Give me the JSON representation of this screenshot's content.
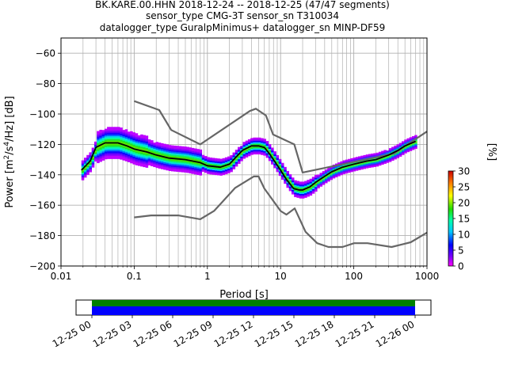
{
  "chart_data": {
    "type": "heatmap",
    "title_lines": [
      "BK.KARE.00.HHN   2018-12-24 -- 2018-12-25  (47/47 segments)",
      "sensor_type CMG-3T sensor_sn T310034",
      "datalogger_type GuralpMinimus+ datalogger_sn MINP-DF59"
    ],
    "xlabel": "Period [s]",
    "ylabel_parts": [
      "Power [m",
      "2",
      "/s",
      "4",
      "/Hz] [dB]"
    ],
    "x_scale": "log",
    "xlim": [
      0.01,
      1000
    ],
    "ylim": [
      -200,
      -50
    ],
    "x_tick_values": [
      0.01,
      0.1,
      1,
      10,
      100,
      1000
    ],
    "x_tick_labels": [
      "0.01",
      "0.1",
      "1",
      "10",
      "100",
      "1000"
    ],
    "y_tick_values": [
      -200,
      -180,
      -160,
      -140,
      -120,
      -100,
      -80,
      -60
    ],
    "y_tick_labels": [
      "−200",
      "−180",
      "−160",
      "−140",
      "−120",
      "−100",
      "−80",
      "−60"
    ],
    "grid": true,
    "colorbar": {
      "label": "[%]",
      "range": [
        0,
        30
      ],
      "tick_values": [
        0,
        5,
        10,
        15,
        20,
        25,
        30
      ],
      "tick_labels": [
        "0",
        "5",
        "10",
        "15",
        "20",
        "25",
        "30"
      ]
    },
    "mode_curve": {
      "period": [
        0.019,
        0.025,
        0.03,
        0.04,
        0.06,
        0.08,
        0.1,
        0.15,
        0.2,
        0.3,
        0.5,
        0.8,
        1,
        1.5,
        2,
        2.5,
        3,
        4,
        5,
        6,
        7,
        8,
        10,
        12,
        15,
        18,
        20,
        25,
        30,
        40,
        50,
        70,
        100,
        150,
        200,
        300,
        400,
        500,
        700
      ],
      "db": [
        -137,
        -131,
        -122,
        -119,
        -119,
        -121,
        -123,
        -125,
        -127,
        -129,
        -130,
        -132,
        -134,
        -135,
        -133,
        -128,
        -124,
        -121,
        -121,
        -122,
        -126,
        -130,
        -137,
        -143,
        -149,
        -150,
        -150,
        -148,
        -145,
        -141,
        -138,
        -135,
        -133,
        -131,
        -130,
        -127,
        -124,
        -121,
        -118
      ]
    },
    "noise_model_high": {
      "period": [
        0.1,
        0.22,
        0.32,
        0.8,
        3.8,
        4.6,
        6.3,
        7.9,
        15.4,
        20,
        354.8,
        1000
      ],
      "db": [
        -91.5,
        -97.4,
        -110.5,
        -120,
        -98,
        -96.5,
        -101,
        -113.5,
        -120,
        -138.5,
        -126,
        -111.5
      ]
    },
    "noise_model_low": {
      "period": [
        0.1,
        0.17,
        0.4,
        0.8,
        1.24,
        2.4,
        4.3,
        5,
        6,
        10,
        12,
        15.6,
        21.9,
        31.6,
        45,
        70,
        101,
        154,
        328,
        600,
        1000
      ],
      "db": [
        -168,
        -166.7,
        -166.7,
        -169.2,
        -163.7,
        -148.6,
        -141.1,
        -141.1,
        -149,
        -163.8,
        -166.2,
        -162.1,
        -177.5,
        -185,
        -187.5,
        -187.5,
        -185,
        -185,
        -187.5,
        -184.4,
        -178
      ]
    },
    "timeline": {
      "tick_labels": [
        "12-25 00",
        "12-25 03",
        "12-25 06",
        "12-25 09",
        "12-25 12",
        "12-25 15",
        "12-25 18",
        "12-25 21",
        "12-26 00"
      ],
      "coverage_hours": [
        0,
        24
      ],
      "colors": {
        "data": "#008000",
        "gaps_used": "#0000ff"
      }
    }
  }
}
